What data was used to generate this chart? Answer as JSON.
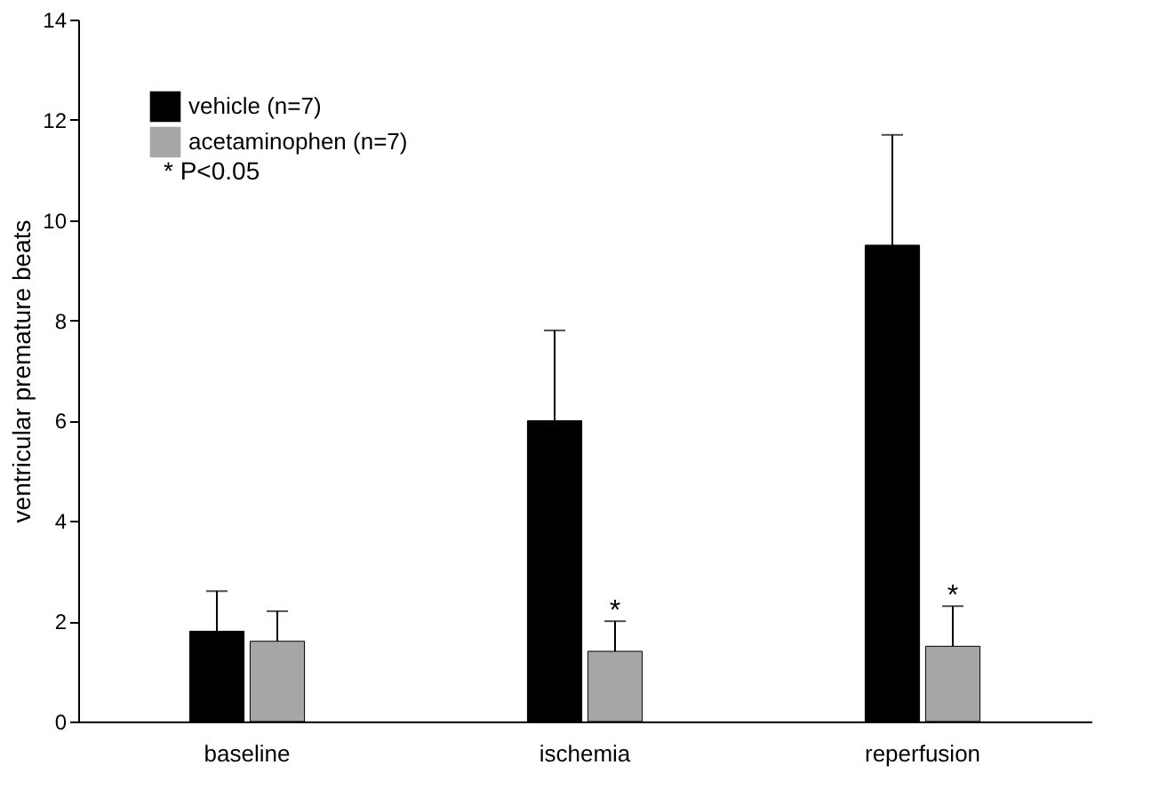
{
  "chart_data": {
    "type": "bar",
    "ylabel": "ventricular premature beats",
    "categories": [
      "baseline",
      "ischemia",
      "reperfusion"
    ],
    "series": [
      {
        "name": "vehicle (n=7)",
        "color": "#000000",
        "values": [
          1.8,
          6.0,
          9.5
        ],
        "errors": [
          [
            1.8,
            2.6
          ],
          [
            6.0,
            7.8
          ],
          [
            9.5,
            11.7
          ]
        ]
      },
      {
        "name": "acetaminophen (n=7)",
        "color": "#a6a6a6",
        "values": [
          1.6,
          1.4,
          1.5
        ],
        "errors": [
          [
            1.6,
            2.2
          ],
          [
            1.4,
            2.0
          ],
          [
            1.5,
            2.3
          ]
        ]
      }
    ],
    "ylim": [
      0,
      14
    ],
    "yticks": [
      0,
      2,
      4,
      6,
      8,
      10,
      12,
      14
    ],
    "grid": false,
    "legend": "top left",
    "annotations": [
      "* P<0.05",
      {
        "text": "*",
        "x": "ischemia",
        "y": 2.0
      },
      {
        "text": "*",
        "x": "reperfusion",
        "y": 2.3
      }
    ]
  }
}
